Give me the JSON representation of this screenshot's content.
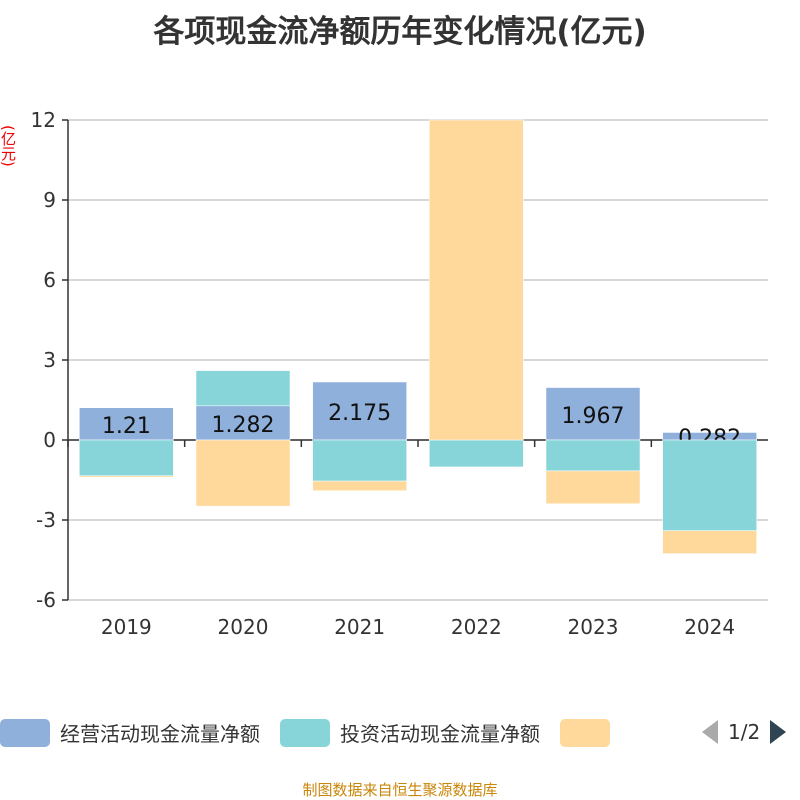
{
  "chart_data": {
    "type": "bar",
    "stacked": true,
    "title": "各项现金流净额历年变化情况(亿元)",
    "ylabel": "(亿元)",
    "categories": [
      "2019",
      "2020",
      "2021",
      "2022",
      "2023",
      "2024"
    ],
    "ylim": [
      -6,
      12
    ],
    "yticks": [
      12,
      9,
      6,
      3,
      0,
      -3,
      -6
    ],
    "series": [
      {
        "name": "经营活动现金流量净额",
        "color": "#8fb0db",
        "values": [
          1.21,
          1.282,
          2.175,
          0,
          1.967,
          0.282
        ],
        "labels": [
          "1.21",
          "1.282",
          "2.175",
          "",
          "1.967",
          "0.282"
        ]
      },
      {
        "name": "投资活动现金流量净额",
        "color": "#87d5d9",
        "values": [
          -1.34,
          1.32,
          -1.54,
          -1.01,
          -1.16,
          -3.4
        ]
      },
      {
        "name": "",
        "color": "#fed99b",
        "values": [
          -0.05,
          -2.48,
          -0.36,
          12.5,
          -1.23,
          -0.86
        ]
      }
    ],
    "grid": true,
    "legend": "bottom"
  },
  "legend": {
    "page": "1/2"
  },
  "source": "制图数据来自恒生聚源数据库"
}
